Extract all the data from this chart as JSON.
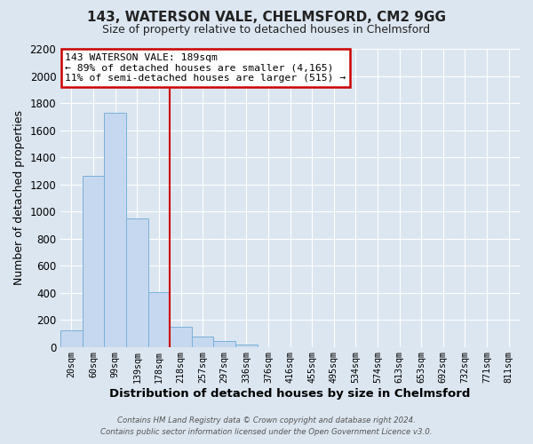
{
  "title": "143, WATERSON VALE, CHELMSFORD, CM2 9GG",
  "subtitle": "Size of property relative to detached houses in Chelmsford",
  "xlabel": "Distribution of detached houses by size in Chelmsford",
  "ylabel": "Number of detached properties",
  "bar_labels": [
    "20sqm",
    "60sqm",
    "99sqm",
    "139sqm",
    "178sqm",
    "218sqm",
    "257sqm",
    "297sqm",
    "336sqm",
    "376sqm",
    "416sqm",
    "455sqm",
    "495sqm",
    "534sqm",
    "574sqm",
    "613sqm",
    "653sqm",
    "692sqm",
    "732sqm",
    "771sqm",
    "811sqm"
  ],
  "bar_values": [
    120,
    1265,
    1730,
    950,
    405,
    150,
    75,
    40,
    20,
    0,
    0,
    0,
    0,
    0,
    0,
    0,
    0,
    0,
    0,
    0,
    0
  ],
  "bar_color": "#c5d8f0",
  "bar_edge_color": "#7ab0d8",
  "ylim": [
    0,
    2200
  ],
  "yticks": [
    0,
    200,
    400,
    600,
    800,
    1000,
    1200,
    1400,
    1600,
    1800,
    2000,
    2200
  ],
  "vline_x": 4.5,
  "vline_color": "#cc0000",
  "annotation_title": "143 WATERSON VALE: 189sqm",
  "annotation_line1": "← 89% of detached houses are smaller (4,165)",
  "annotation_line2": "11% of semi-detached houses are larger (515) →",
  "annotation_box_facecolor": "#ffffff",
  "annotation_box_edgecolor": "#cc0000",
  "bg_color": "#dce6f0",
  "grid_color": "#ffffff",
  "footer_line1": "Contains HM Land Registry data © Crown copyright and database right 2024.",
  "footer_line2": "Contains public sector information licensed under the Open Government Licence v3.0."
}
